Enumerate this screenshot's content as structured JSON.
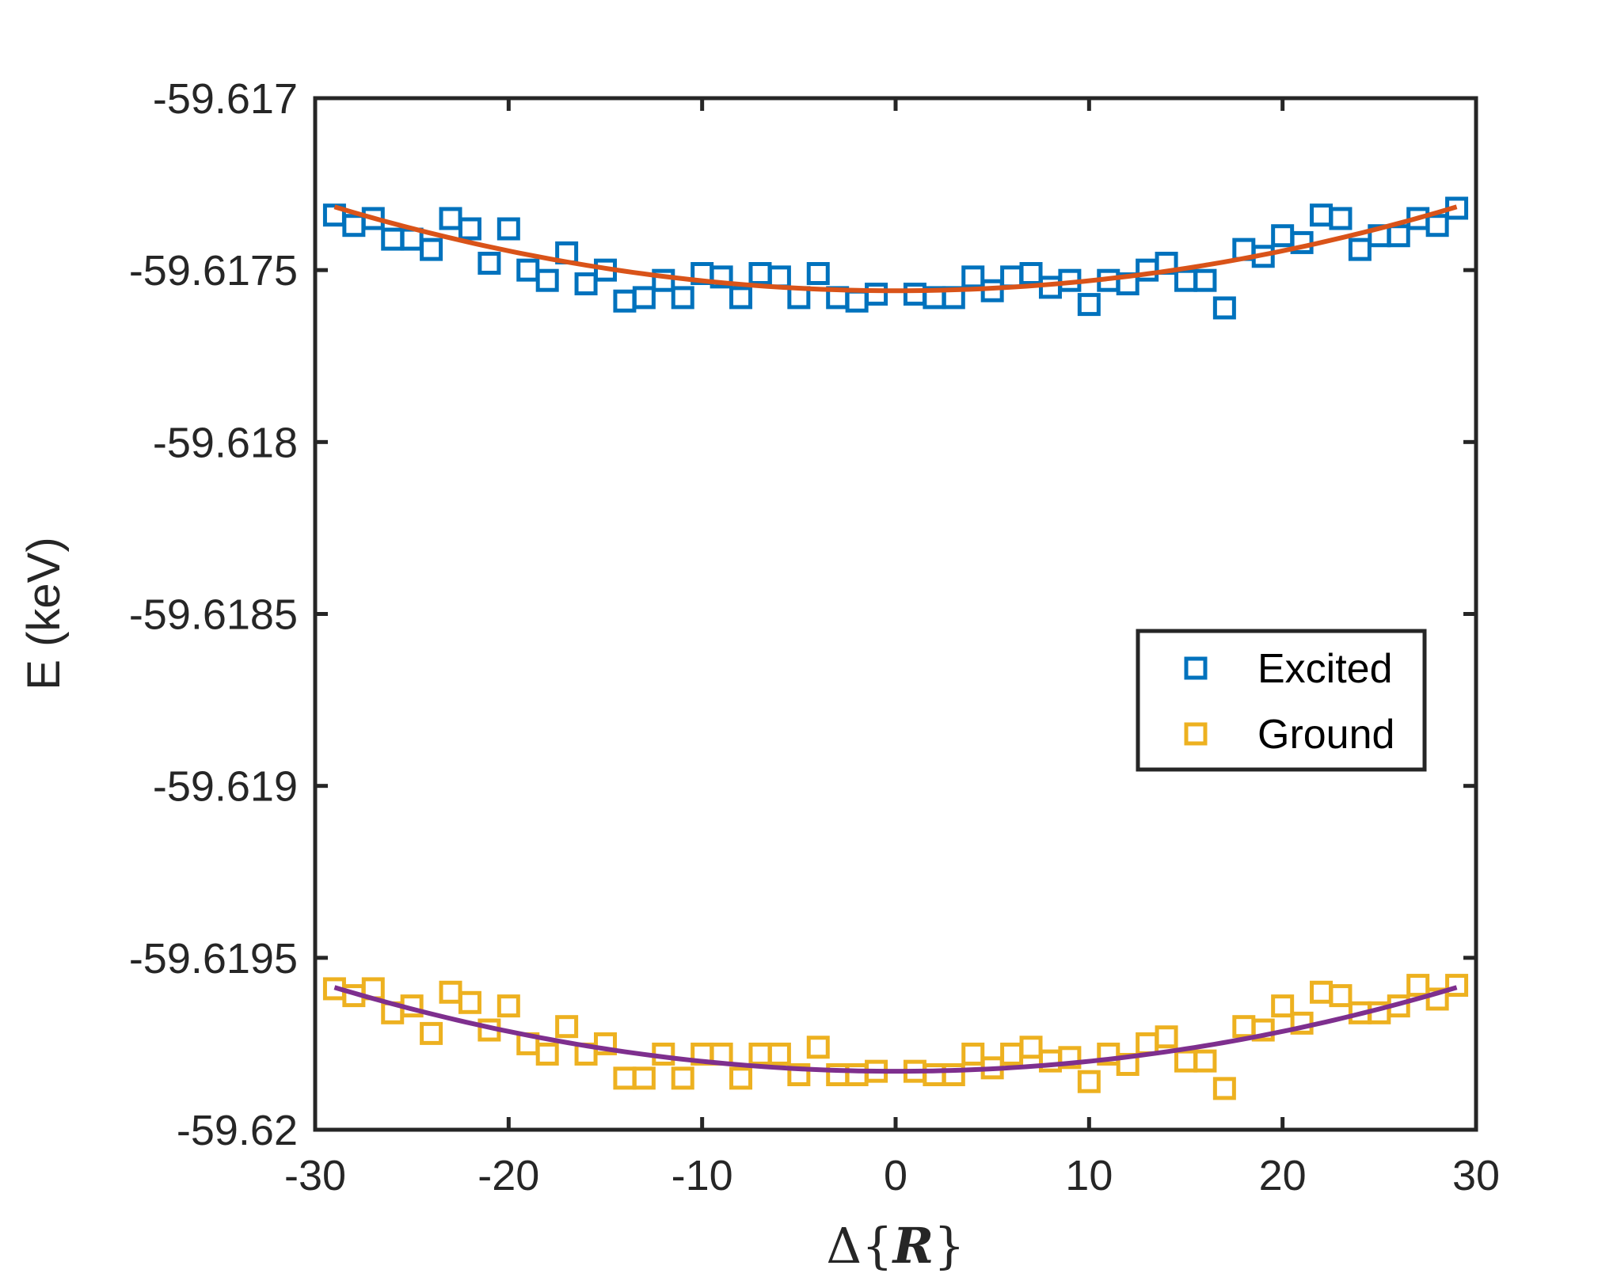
{
  "chart_data": {
    "type": "scatter",
    "title": "",
    "xlabel": "Δ{R}",
    "xlabel_parts": {
      "delta": "Δ",
      "open": "{",
      "var": "R",
      "close": "}"
    },
    "ylabel": "E (keV)",
    "xlim": [
      -30,
      30
    ],
    "ylim": [
      -59.62,
      -59.617
    ],
    "xticks": [
      -30,
      -20,
      -10,
      0,
      10,
      20,
      30
    ],
    "xtick_labels": [
      "-30",
      "-20",
      "-10",
      "0",
      "10",
      "20",
      "30"
    ],
    "yticks": [
      -59.62,
      -59.6195,
      -59.619,
      -59.6185,
      -59.618,
      -59.6175,
      -59.617
    ],
    "ytick_labels": [
      "-59.62",
      "-59.6195",
      "-59.619",
      "-59.6185",
      "-59.618",
      "-59.6175",
      "-59.617"
    ],
    "grid": false,
    "legend_position": "right-middle",
    "series": [
      {
        "name": "Excited",
        "marker": "square",
        "color": "#0072BD",
        "x": [
          -29,
          -28,
          -27,
          -26,
          -25,
          -24,
          -23,
          -22,
          -21,
          -20,
          -19,
          -18,
          -17,
          -16,
          -15,
          -14,
          -13,
          -12,
          -11,
          -10,
          -9,
          -8,
          -7,
          -6,
          -5,
          -4,
          -3,
          -2,
          -1,
          1,
          2,
          3,
          4,
          5,
          6,
          7,
          8,
          9,
          10,
          11,
          12,
          13,
          14,
          15,
          16,
          17,
          18,
          19,
          20,
          21,
          22,
          23,
          24,
          25,
          26,
          27,
          28,
          29
        ],
        "y": [
          -59.61734,
          -59.61737,
          -59.61735,
          -59.61741,
          -59.61741,
          -59.61744,
          -59.61735,
          -59.61738,
          -59.61748,
          -59.61738,
          -59.6175,
          -59.61753,
          -59.61745,
          -59.61754,
          -59.6175,
          -59.61759,
          -59.61758,
          -59.61753,
          -59.61758,
          -59.61751,
          -59.61752,
          -59.61758,
          -59.61751,
          -59.61752,
          -59.61758,
          -59.61751,
          -59.61758,
          -59.61759,
          -59.61757,
          -59.61757,
          -59.61758,
          -59.61758,
          -59.61752,
          -59.61756,
          -59.61752,
          -59.61751,
          -59.61755,
          -59.61753,
          -59.6176,
          -59.61753,
          -59.61754,
          -59.6175,
          -59.61748,
          -59.61753,
          -59.61753,
          -59.61761,
          -59.61744,
          -59.61746,
          -59.6174,
          -59.61742,
          -59.61734,
          -59.61735,
          -59.61744,
          -59.6174,
          -59.6174,
          -59.61735,
          -59.61737,
          -59.61732
        ]
      },
      {
        "name": "Ground",
        "marker": "square",
        "color": "#EDB120",
        "x": [
          -29,
          -28,
          -27,
          -26,
          -25,
          -24,
          -23,
          -22,
          -21,
          -20,
          -19,
          -18,
          -17,
          -16,
          -15,
          -14,
          -13,
          -12,
          -11,
          -10,
          -9,
          -8,
          -7,
          -6,
          -5,
          -4,
          -3,
          -2,
          -1,
          1,
          2,
          3,
          4,
          5,
          6,
          7,
          8,
          9,
          10,
          11,
          12,
          13,
          14,
          15,
          16,
          17,
          18,
          19,
          20,
          21,
          22,
          23,
          24,
          25,
          26,
          27,
          28,
          29
        ],
        "y": [
          -59.61959,
          -59.61961,
          -59.61959,
          -59.61966,
          -59.61964,
          -59.61972,
          -59.6196,
          -59.61963,
          -59.61971,
          -59.61964,
          -59.61975,
          -59.61978,
          -59.6197,
          -59.61978,
          -59.61975,
          -59.61985,
          -59.61985,
          -59.61978,
          -59.61985,
          -59.61978,
          -59.61978,
          -59.61985,
          -59.61978,
          -59.61978,
          -59.61984,
          -59.61976,
          -59.61984,
          -59.61984,
          -59.61983,
          -59.61983,
          -59.61984,
          -59.61984,
          -59.61978,
          -59.61982,
          -59.61978,
          -59.61976,
          -59.6198,
          -59.61979,
          -59.61986,
          -59.61978,
          -59.61981,
          -59.61975,
          -59.61973,
          -59.6198,
          -59.6198,
          -59.61988,
          -59.6197,
          -59.61971,
          -59.61964,
          -59.61969,
          -59.6196,
          -59.61961,
          -59.61966,
          -59.61966,
          -59.61964,
          -59.61958,
          -59.61962,
          -59.61958
        ]
      },
      {
        "name": "Excited fit",
        "type": "line",
        "color": "#D95319",
        "legend": false,
        "x_range": [
          -29,
          29
        ],
        "quadratic": {
          "vertex_x": 0,
          "vertex_y": -59.61756,
          "a": 2.9e-07
        }
      },
      {
        "name": "Ground fit",
        "type": "line",
        "color": "#7E2F8E",
        "legend": false,
        "x_range": [
          -29,
          29
        ],
        "quadratic": {
          "vertex_x": 0,
          "vertex_y": -59.61983,
          "a": 2.9e-07
        }
      }
    ]
  }
}
